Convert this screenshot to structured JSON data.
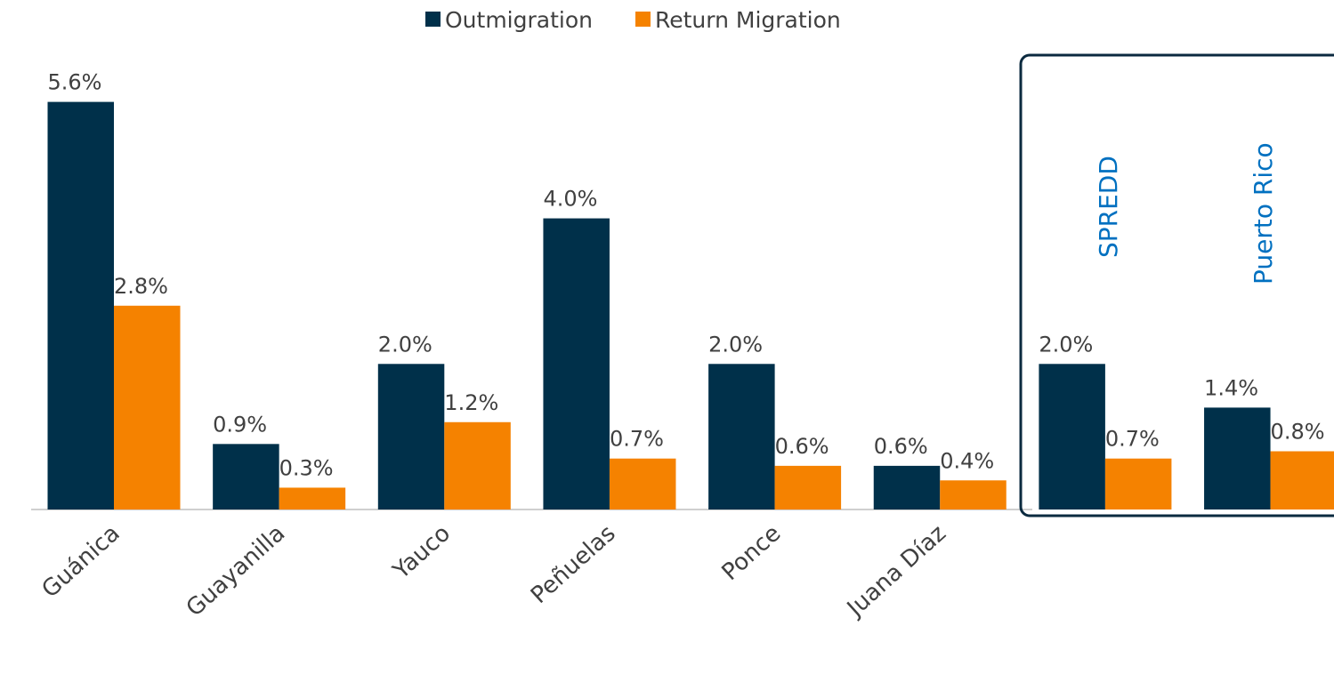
{
  "chart_data": {
    "type": "bar",
    "categories": [
      "Guánica",
      "Guayanilla",
      "Yauco",
      "Peñuelas",
      "Ponce",
      "Juana Díaz",
      "SPREDD",
      "Puerto Rico"
    ],
    "series": [
      {
        "name": "Outmigration",
        "color": "#00304a",
        "values": [
          5.6,
          0.9,
          2.0,
          4.0,
          2.0,
          0.6,
          2.0,
          1.4
        ],
        "value_labels": [
          "5.6%",
          "0.9%",
          "2.0%",
          "4.0%",
          "2.0%",
          "0.6%",
          "2.0%",
          "1.4%"
        ]
      },
      {
        "name": "Return Migration",
        "color": "#f58200",
        "values": [
          2.8,
          0.3,
          1.2,
          0.7,
          0.6,
          0.4,
          0.7,
          0.8
        ],
        "value_labels": [
          "2.8%",
          "0.3%",
          "1.2%",
          "0.7%",
          "0.6%",
          "0.4%",
          "0.7%",
          "0.8%"
        ]
      }
    ],
    "ylim": [
      0,
      7
    ],
    "grid": false,
    "legend": "top"
  }
}
